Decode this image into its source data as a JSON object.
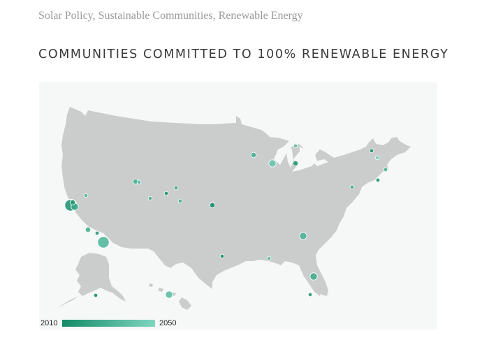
{
  "page": {
    "category_line": "Solar Policy, Sustainable Communities, Renewable Energy",
    "title": "COMMUNITIES COMMITTED TO 100% RENEWABLE ENERGY"
  },
  "legend": {
    "start_label": "2010",
    "end_label": "2050",
    "color_start": "#138a66",
    "color_end": "#7fd6c1"
  },
  "colors": {
    "land": "#cbcdcd",
    "panel": "#f6f7f7",
    "marker_stroke": "#ffffff"
  },
  "markers": [
    {
      "place": "San Francisco Bay Area",
      "year_fraction": 0.15,
      "size": "large"
    },
    {
      "place": "Bay Area city 2",
      "year_fraction": 0.35,
      "size": "medium"
    },
    {
      "place": "Bay Area city 3",
      "year_fraction": 0.2,
      "size": "small"
    },
    {
      "place": "San Diego",
      "year_fraction": 0.6,
      "size": "large"
    },
    {
      "place": "Los Angeles area",
      "year_fraction": 0.5,
      "size": "small"
    },
    {
      "place": "Los Angeles area 2",
      "year_fraction": 0.2,
      "size": "tiny"
    },
    {
      "place": "Nevada",
      "year_fraction": 0.6,
      "size": "tiny"
    },
    {
      "place": "Salt Lake City",
      "year_fraction": 0.5,
      "size": "small"
    },
    {
      "place": "Utah 2",
      "year_fraction": 0.6,
      "size": "tiny"
    },
    {
      "place": "Utah 3",
      "year_fraction": 0.5,
      "size": "tiny"
    },
    {
      "place": "Colorado 1",
      "year_fraction": 0.1,
      "size": "tiny"
    },
    {
      "place": "Colorado 2",
      "year_fraction": 0.4,
      "size": "tiny"
    },
    {
      "place": "Colorado 3",
      "year_fraction": 0.5,
      "size": "tiny"
    },
    {
      "place": "Kansas",
      "year_fraction": 0.05,
      "size": "small"
    },
    {
      "place": "Minnesota",
      "year_fraction": 0.5,
      "size": "small"
    },
    {
      "place": "Iowa",
      "year_fraction": 0.8,
      "size": "medium"
    },
    {
      "place": "Michigan",
      "year_fraction": 0.7,
      "size": "tiny"
    },
    {
      "place": "Chicago",
      "year_fraction": 0.2,
      "size": "small"
    },
    {
      "place": "Atlanta",
      "year_fraction": 0.55,
      "size": "medium"
    },
    {
      "place": "Texas",
      "year_fraction": 0.1,
      "size": "tiny"
    },
    {
      "place": "New Orleans",
      "year_fraction": 0.7,
      "size": "tiny"
    },
    {
      "place": "Orlando",
      "year_fraction": 0.45,
      "size": "medium"
    },
    {
      "place": "Florida 2",
      "year_fraction": 0.2,
      "size": "tiny"
    },
    {
      "place": "Washington DC",
      "year_fraction": 0.4,
      "size": "tiny"
    },
    {
      "place": "Vermont",
      "year_fraction": 0.1,
      "size": "tiny"
    },
    {
      "place": "New Hampshire",
      "year_fraction": 0.9,
      "size": "tiny"
    },
    {
      "place": "Massachusetts",
      "year_fraction": 0.1,
      "size": "tiny"
    },
    {
      "place": "Rhode Island",
      "year_fraction": 0.5,
      "size": "tiny"
    },
    {
      "place": "Hawaii",
      "year_fraction": 0.7,
      "size": "medium"
    },
    {
      "place": "Alaska",
      "year_fraction": 0.05,
      "size": "tiny"
    }
  ]
}
